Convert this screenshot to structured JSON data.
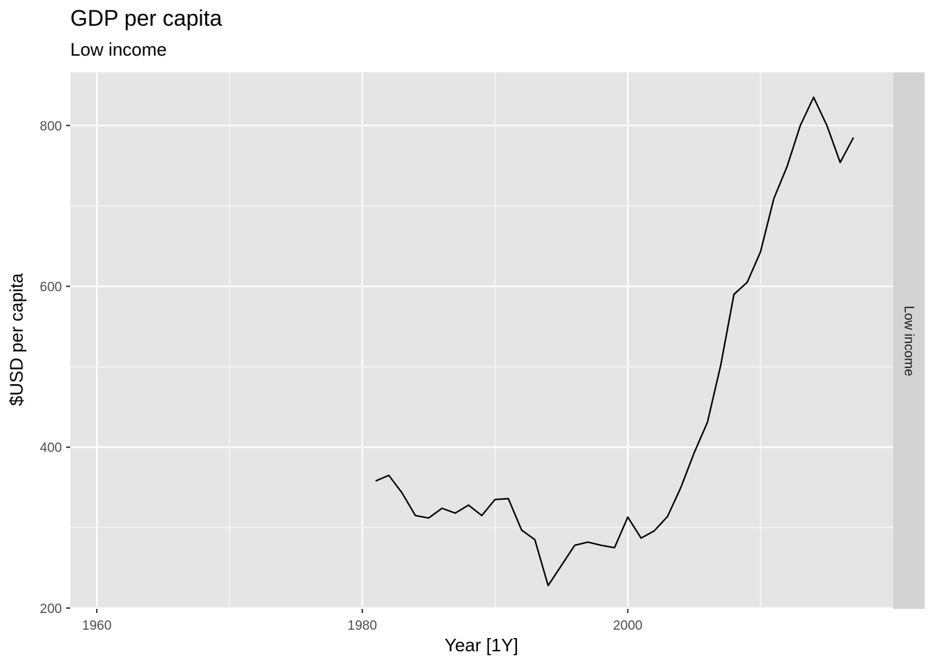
{
  "chart_data": {
    "type": "line",
    "title": "GDP per capita",
    "subtitle": "Low income",
    "xlabel": "Year [1Y]",
    "ylabel": "$USD per capita",
    "facet_label": "Low income",
    "xlim": [
      1958,
      2020
    ],
    "ylim": [
      199,
      866
    ],
    "x_ticks": [
      1960,
      1980,
      2000
    ],
    "y_ticks": [
      200,
      400,
      600,
      800
    ],
    "x_minor": [
      1970,
      1990,
      2010
    ],
    "y_minor": [
      300,
      500,
      700
    ],
    "grid": true,
    "series": [
      {
        "color": "#000000",
        "x": [
          1981,
          1982,
          1983,
          1984,
          1985,
          1986,
          1987,
          1988,
          1989,
          1990,
          1991,
          1992,
          1993,
          1994,
          1995,
          1996,
          1997,
          1998,
          1999,
          2000,
          2001,
          2002,
          2003,
          2004,
          2005,
          2006,
          2007,
          2008,
          2009,
          2010,
          2011,
          2012,
          2013,
          2014,
          2015,
          2016,
          2017
        ],
        "values": [
          358,
          365,
          343,
          315,
          312,
          324,
          318,
          328,
          315,
          335,
          336,
          297,
          285,
          228,
          253,
          278,
          282,
          278,
          275,
          313,
          287,
          296,
          314,
          350,
          393,
          431,
          502,
          590,
          605,
          643,
          709,
          749,
          800,
          835,
          800,
          754,
          785
        ]
      }
    ]
  }
}
